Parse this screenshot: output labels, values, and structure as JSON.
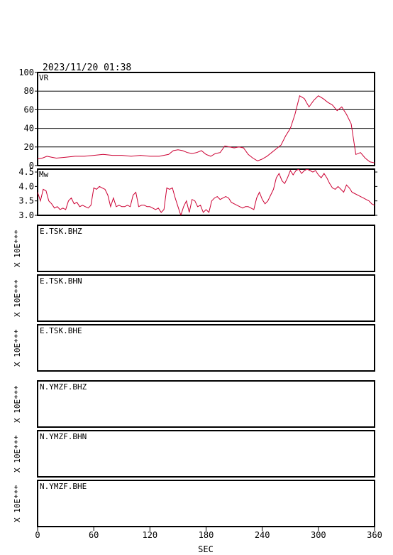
{
  "timestamp": "2023/11/20 01:38",
  "x_axis": {
    "label": "SEC",
    "min": 0,
    "max": 360,
    "ticks": [
      0,
      60,
      120,
      180,
      240,
      300,
      360
    ]
  },
  "colors": {
    "trace": "#cc0033",
    "frame": "#000000"
  },
  "chart_data": [
    {
      "type": "line",
      "panel": "vr",
      "title": "VR",
      "ylim": [
        0,
        100
      ],
      "yticks": [
        0,
        20,
        40,
        60,
        80,
        100
      ],
      "ytick_labels": [
        "0",
        "20",
        "40",
        "60",
        "80",
        "100"
      ],
      "grid": true,
      "x": [
        0,
        5,
        10,
        15,
        20,
        30,
        40,
        50,
        60,
        70,
        80,
        90,
        100,
        110,
        120,
        130,
        140,
        145,
        150,
        155,
        160,
        165,
        170,
        175,
        180,
        185,
        190,
        195,
        200,
        205,
        210,
        215,
        220,
        225,
        230,
        235,
        240,
        245,
        250,
        255,
        260,
        265,
        270,
        275,
        280,
        285,
        290,
        295,
        300,
        305,
        310,
        315,
        320,
        325,
        330,
        335,
        340,
        345,
        350,
        355,
        360
      ],
      "y": [
        7,
        8,
        10,
        9,
        8,
        9,
        10,
        10,
        11,
        12,
        11,
        11,
        10,
        11,
        10,
        10,
        12,
        16,
        17,
        16,
        14,
        13,
        14,
        16,
        12,
        10,
        13,
        14,
        21,
        20,
        19,
        20,
        19,
        12,
        8,
        5,
        7,
        10,
        14,
        18,
        22,
        32,
        40,
        55,
        75,
        72,
        63,
        70,
        75,
        72,
        68,
        65,
        59,
        63,
        55,
        45,
        12,
        14,
        8,
        4,
        3
      ]
    },
    {
      "type": "line",
      "panel": "mw",
      "title": "Mw",
      "ylim": [
        3.0,
        4.6
      ],
      "yticks": [
        3.0,
        3.5,
        4.0,
        4.5
      ],
      "ytick_labels": [
        "3.0",
        "3.5",
        "4.0",
        "4.5"
      ],
      "grid": false,
      "x": [
        0,
        3,
        6,
        9,
        12,
        15,
        18,
        21,
        24,
        27,
        30,
        33,
        36,
        39,
        42,
        45,
        48,
        51,
        54,
        57,
        60,
        63,
        66,
        69,
        72,
        75,
        78,
        81,
        84,
        87,
        90,
        93,
        96,
        99,
        102,
        105,
        108,
        111,
        114,
        117,
        120,
        123,
        126,
        129,
        132,
        135,
        138,
        141,
        144,
        147,
        150,
        153,
        156,
        159,
        162,
        165,
        168,
        171,
        174,
        177,
        180,
        183,
        186,
        189,
        192,
        195,
        198,
        201,
        204,
        207,
        210,
        213,
        216,
        219,
        222,
        225,
        228,
        231,
        234,
        237,
        240,
        243,
        246,
        249,
        252,
        255,
        258,
        261,
        264,
        267,
        270,
        273,
        276,
        279,
        282,
        285,
        288,
        291,
        294,
        297,
        300,
        303,
        306,
        309,
        312,
        315,
        318,
        321,
        324,
        327,
        330,
        333,
        336,
        339,
        342,
        345,
        348,
        351,
        354,
        357,
        360
      ],
      "y": [
        3.8,
        3.5,
        3.9,
        3.85,
        3.5,
        3.4,
        3.25,
        3.3,
        3.2,
        3.25,
        3.2,
        3.5,
        3.6,
        3.4,
        3.45,
        3.3,
        3.35,
        3.3,
        3.25,
        3.35,
        3.95,
        3.9,
        4.0,
        3.95,
        3.9,
        3.7,
        3.3,
        3.6,
        3.3,
        3.35,
        3.3,
        3.3,
        3.35,
        3.3,
        3.7,
        3.8,
        3.3,
        3.35,
        3.35,
        3.3,
        3.3,
        3.25,
        3.2,
        3.25,
        3.1,
        3.2,
        3.95,
        3.9,
        3.95,
        3.6,
        3.3,
        3.0,
        3.3,
        3.5,
        3.1,
        3.55,
        3.5,
        3.3,
        3.35,
        3.1,
        3.2,
        3.1,
        3.5,
        3.6,
        3.65,
        3.55,
        3.6,
        3.65,
        3.6,
        3.45,
        3.4,
        3.35,
        3.3,
        3.25,
        3.3,
        3.3,
        3.25,
        3.2,
        3.6,
        3.8,
        3.55,
        3.4,
        3.5,
        3.7,
        3.9,
        4.3,
        4.45,
        4.2,
        4.1,
        4.3,
        4.55,
        4.4,
        4.55,
        4.6,
        4.45,
        4.55,
        4.6,
        4.55,
        4.5,
        4.55,
        4.4,
        4.3,
        4.45,
        4.3,
        4.1,
        3.95,
        3.9,
        4.0,
        3.9,
        3.8,
        4.05,
        3.95,
        3.8,
        3.75,
        3.7,
        3.65,
        3.6,
        3.55,
        3.5,
        3.4,
        3.35
      ]
    }
  ],
  "station_panels": [
    {
      "label": "E.TSK.BHZ",
      "y_label": "X 10E***"
    },
    {
      "label": "E.TSK.BHN",
      "y_label": "X 10E***"
    },
    {
      "label": "E.TSK.BHE",
      "y_label": "X 10E***"
    },
    {
      "label": "N.YMZF.BHZ",
      "y_label": "X 10E***"
    },
    {
      "label": "N.YMZF.BHN",
      "y_label": "X 10E***"
    },
    {
      "label": "N.YMZF.BHE",
      "y_label": "X 10E***"
    }
  ]
}
